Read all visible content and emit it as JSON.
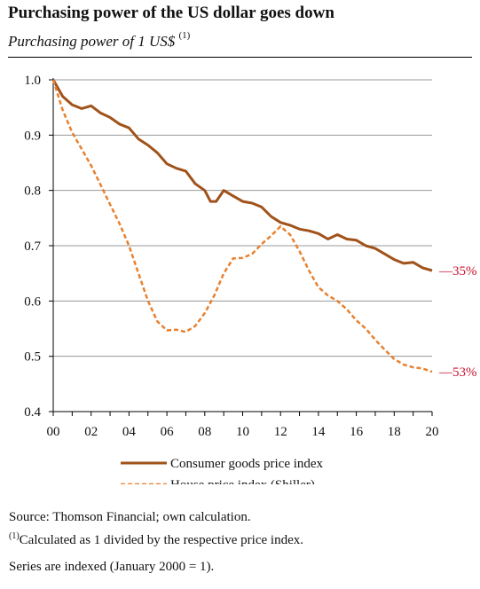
{
  "title": "Purchasing power of the US dollar goes down",
  "subtitle": "Purchasing power of 1 US$",
  "subtitle_note_marker": "(1)",
  "chart_data": {
    "type": "line",
    "xlim": [
      0,
      20
    ],
    "ylim": [
      0.4,
      1.0
    ],
    "x_tick_labels": [
      "00",
      "02",
      "04",
      "06",
      "08",
      "10",
      "12",
      "14",
      "16",
      "18",
      "20"
    ],
    "x_ticks": [
      0,
      2,
      4,
      6,
      8,
      10,
      12,
      14,
      16,
      18,
      20
    ],
    "y_ticks": [
      0.4,
      0.5,
      0.6,
      0.7,
      0.8,
      0.9,
      1.0
    ],
    "y_tick_labels": [
      "0.4",
      "0.5",
      "0.6",
      "0.7",
      "0.8",
      "0.9",
      "1.0"
    ],
    "grid": "horizontal",
    "legend_position": "bottom",
    "series": [
      {
        "name": "Consumer goods price index",
        "color": "#a0521a",
        "style": "solid",
        "end_label": "—35%",
        "points": [
          [
            0,
            1.0
          ],
          [
            0.5,
            0.97
          ],
          [
            1,
            0.955
          ],
          [
            1.5,
            0.948
          ],
          [
            2,
            0.953
          ],
          [
            2.5,
            0.94
          ],
          [
            3,
            0.932
          ],
          [
            3.5,
            0.92
          ],
          [
            4,
            0.913
          ],
          [
            4.5,
            0.893
          ],
          [
            5,
            0.882
          ],
          [
            5.5,
            0.868
          ],
          [
            6,
            0.848
          ],
          [
            6.5,
            0.84
          ],
          [
            7,
            0.835
          ],
          [
            7.5,
            0.812
          ],
          [
            8,
            0.8
          ],
          [
            8.3,
            0.78
          ],
          [
            8.6,
            0.78
          ],
          [
            9,
            0.8
          ],
          [
            9.5,
            0.79
          ],
          [
            10,
            0.78
          ],
          [
            10.5,
            0.777
          ],
          [
            11,
            0.77
          ],
          [
            11.5,
            0.753
          ],
          [
            12,
            0.742
          ],
          [
            12.5,
            0.737
          ],
          [
            13,
            0.73
          ],
          [
            13.5,
            0.727
          ],
          [
            14,
            0.722
          ],
          [
            14.5,
            0.712
          ],
          [
            15,
            0.72
          ],
          [
            15.5,
            0.712
          ],
          [
            16,
            0.71
          ],
          [
            16.5,
            0.7
          ],
          [
            17,
            0.695
          ],
          [
            17.5,
            0.685
          ],
          [
            18,
            0.675
          ],
          [
            18.5,
            0.668
          ],
          [
            19,
            0.67
          ],
          [
            19.5,
            0.66
          ],
          [
            20,
            0.655
          ]
        ]
      },
      {
        "name": "House price index (Shiller)",
        "color": "#e8812f",
        "style": "dashed",
        "end_label": "—53%",
        "points": [
          [
            0,
            1.0
          ],
          [
            0.5,
            0.945
          ],
          [
            1,
            0.905
          ],
          [
            1.5,
            0.875
          ],
          [
            2,
            0.845
          ],
          [
            2.5,
            0.81
          ],
          [
            3,
            0.775
          ],
          [
            3.5,
            0.74
          ],
          [
            4,
            0.7
          ],
          [
            4.5,
            0.65
          ],
          [
            5,
            0.6
          ],
          [
            5.5,
            0.563
          ],
          [
            6,
            0.547
          ],
          [
            6.5,
            0.548
          ],
          [
            7,
            0.544
          ],
          [
            7.5,
            0.555
          ],
          [
            8,
            0.578
          ],
          [
            8.5,
            0.61
          ],
          [
            9,
            0.65
          ],
          [
            9.5,
            0.677
          ],
          [
            10,
            0.678
          ],
          [
            10.5,
            0.685
          ],
          [
            11,
            0.703
          ],
          [
            11.5,
            0.718
          ],
          [
            12,
            0.735
          ],
          [
            12.5,
            0.72
          ],
          [
            13,
            0.69
          ],
          [
            13.5,
            0.655
          ],
          [
            14,
            0.625
          ],
          [
            14.5,
            0.61
          ],
          [
            15,
            0.6
          ],
          [
            15.5,
            0.585
          ],
          [
            16,
            0.565
          ],
          [
            16.5,
            0.55
          ],
          [
            17,
            0.53
          ],
          [
            17.5,
            0.512
          ],
          [
            18,
            0.495
          ],
          [
            18.5,
            0.485
          ],
          [
            19,
            0.48
          ],
          [
            19.5,
            0.478
          ],
          [
            20,
            0.472
          ]
        ]
      }
    ]
  },
  "footer": {
    "source": "Source: Thomson Financial; own calculation.",
    "note_marker": "(1)",
    "note": "Calculated as 1 divided by the respective price index.",
    "indexing": "Series are indexed (January 2000 = 1)."
  }
}
